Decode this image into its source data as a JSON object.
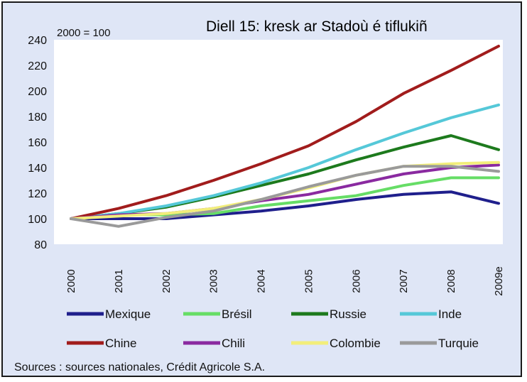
{
  "chart_data": {
    "type": "line",
    "title": "Diell 15: kresk ar Stadoù é tiflukiñ",
    "index_note": "2000 = 100",
    "source": "Sources : sources nationales, Crédit Agricole S.A.",
    "categories": [
      "2000",
      "2001",
      "2002",
      "2003",
      "2004",
      "2005",
      "2006",
      "2007",
      "2008",
      "2009e"
    ],
    "ylim": [
      80,
      240
    ],
    "yticks": [
      80,
      100,
      120,
      140,
      160,
      180,
      200,
      220,
      240
    ],
    "grid": false,
    "legend_position": "bottom",
    "series": [
      {
        "name": "Mexique",
        "color": "#1f1f8c",
        "values": [
          100,
          100,
          100,
          103,
          106,
          110,
          115,
          119,
          121,
          112
        ]
      },
      {
        "name": "Brésil",
        "color": "#66dd66",
        "values": [
          100,
          103,
          103,
          104,
          110,
          114,
          118,
          126,
          132,
          132
        ]
      },
      {
        "name": "Russie",
        "color": "#1d7a1d",
        "values": [
          100,
          104,
          109,
          117,
          126,
          135,
          146,
          156,
          165,
          154
        ]
      },
      {
        "name": "Inde",
        "color": "#55c8d8",
        "values": [
          100,
          104,
          110,
          118,
          128,
          140,
          154,
          167,
          179,
          189
        ]
      },
      {
        "name": "Chine",
        "color": "#a11c1c",
        "values": [
          100,
          108,
          118,
          130,
          143,
          157,
          176,
          198,
          216,
          235
        ]
      },
      {
        "name": "Chili",
        "color": "#8a2aa0",
        "values": [
          100,
          103,
          104,
          108,
          114,
          119,
          127,
          135,
          140,
          142
        ]
      },
      {
        "name": "Colombie",
        "color": "#f2ee7a",
        "values": [
          100,
          102,
          104,
          108,
          115,
          124,
          134,
          141,
          143,
          144
        ]
      },
      {
        "name": "Turquie",
        "color": "#9a9a9a",
        "values": [
          100,
          94,
          101,
          106,
          115,
          125,
          134,
          141,
          141,
          137
        ]
      }
    ]
  }
}
